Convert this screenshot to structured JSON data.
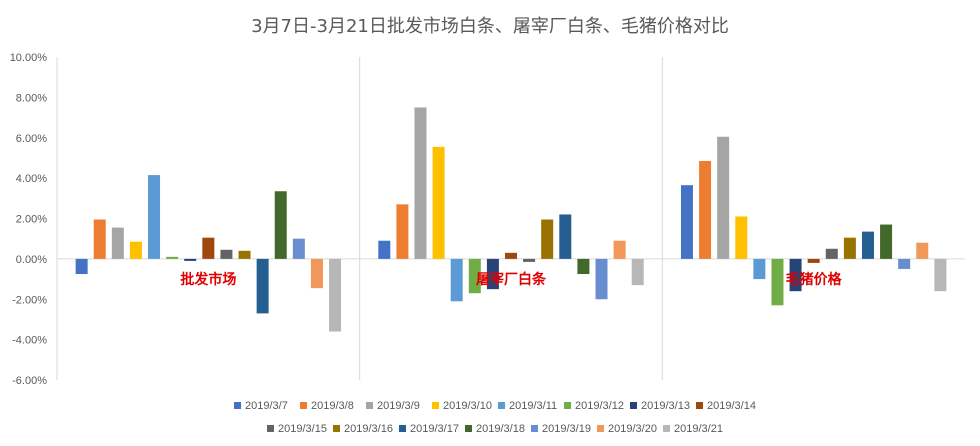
{
  "chart_data": {
    "type": "bar",
    "title": "3月7日-3月21日批发市场白条、屠宰厂白条、毛猪价格对比",
    "categories": [
      "批发市场",
      "屠宰厂白条",
      "毛猪价格"
    ],
    "ylim": [
      -6,
      10
    ],
    "yticks": [
      {
        "value": 10,
        "label": "10.00%"
      },
      {
        "value": 8,
        "label": "8.00%"
      },
      {
        "value": 6,
        "label": "6.00%"
      },
      {
        "value": 4,
        "label": "4.00%"
      },
      {
        "value": 2,
        "label": "2.00%"
      },
      {
        "value": 0,
        "label": "0.00%"
      },
      {
        "value": -2,
        "label": "-2.00%"
      },
      {
        "value": -4,
        "label": "-4.00%"
      },
      {
        "value": -6,
        "label": "-6.00%"
      }
    ],
    "grid": "vertical category separators",
    "legend_position": "bottom",
    "series": [
      {
        "name": "2019/3/7",
        "color": "#4472C4",
        "values": [
          -0.75,
          0.9,
          3.65
        ]
      },
      {
        "name": "2019/3/8",
        "color": "#ED7D31",
        "values": [
          1.95,
          2.7,
          4.85
        ]
      },
      {
        "name": "2019/3/9",
        "color": "#A5A5A5",
        "values": [
          1.55,
          7.5,
          6.05
        ]
      },
      {
        "name": "2019/3/10",
        "color": "#FFC000",
        "values": [
          0.85,
          5.55,
          2.1
        ]
      },
      {
        "name": "2019/3/11",
        "color": "#5B9BD5",
        "values": [
          4.15,
          -2.1,
          -1.0
        ]
      },
      {
        "name": "2019/3/12",
        "color": "#70AD47",
        "values": [
          0.1,
          -1.7,
          -2.3
        ]
      },
      {
        "name": "2019/3/13",
        "color": "#264478",
        "values": [
          -0.1,
          -1.5,
          -1.6
        ]
      },
      {
        "name": "2019/3/14",
        "color": "#9E480E",
        "values": [
          1.05,
          0.3,
          -0.2
        ]
      },
      {
        "name": "2019/3/15",
        "color": "#636363",
        "values": [
          0.45,
          -0.15,
          0.5
        ]
      },
      {
        "name": "2019/3/16",
        "color": "#997300",
        "values": [
          0.4,
          1.95,
          1.05
        ]
      },
      {
        "name": "2019/3/17",
        "color": "#255E91",
        "values": [
          -2.7,
          2.2,
          1.35
        ]
      },
      {
        "name": "2019/3/18",
        "color": "#43682B",
        "values": [
          3.35,
          -0.75,
          1.7
        ]
      },
      {
        "name": "2019/3/19",
        "color": "#698ED0",
        "values": [
          1.0,
          -2.0,
          -0.5
        ]
      },
      {
        "name": "2019/3/20",
        "color": "#F1975A",
        "values": [
          -1.45,
          0.9,
          0.8
        ]
      },
      {
        "name": "2019/3/21",
        "color": "#B7B7B7",
        "values": [
          -3.6,
          -1.3,
          -1.6
        ]
      }
    ]
  }
}
